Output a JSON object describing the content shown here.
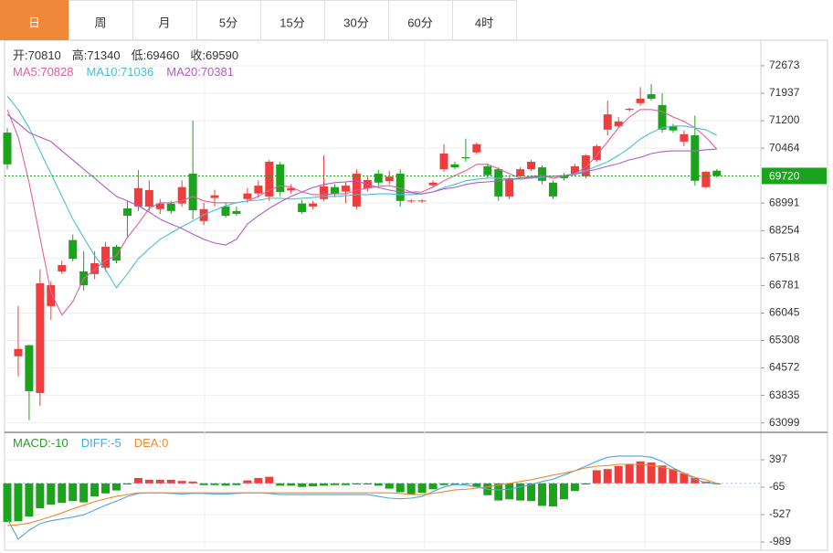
{
  "tabs": [
    {
      "label": "日",
      "active": true
    },
    {
      "label": "周",
      "active": false
    },
    {
      "label": "月",
      "active": false
    },
    {
      "label": "5分",
      "active": false
    },
    {
      "label": "15分",
      "active": false
    },
    {
      "label": "30分",
      "active": false
    },
    {
      "label": "60分",
      "active": false
    },
    {
      "label": "4时",
      "active": false
    }
  ],
  "chart_data": [
    {
      "type": "candlestick",
      "ohlc_labels": [
        "开:",
        "高:",
        "低:",
        "收:"
      ],
      "ohlc_values": [
        70810,
        71340,
        69460,
        69590
      ],
      "open": [
        70880,
        64885,
        65180,
        63900,
        66230,
        67160,
        68000,
        67160,
        67090,
        67260,
        67820,
        68850,
        68900,
        68900,
        68830,
        68980,
        68980,
        69780,
        68510,
        69130,
        68900,
        68780,
        69100,
        69250,
        69170,
        70030,
        69330,
        68980,
        68900,
        69100,
        69420,
        69300,
        68900,
        69390,
        69780,
        69580,
        69780,
        69050,
        69050,
        69470,
        69900,
        70030,
        70220,
        70350,
        69980,
        69900,
        69170,
        69710,
        69900,
        69950,
        69540,
        69730,
        69780,
        69710,
        70150,
        70960,
        71050,
        71490,
        71670,
        71910,
        71620,
        71050,
        70640,
        70810,
        69420,
        69860
      ],
      "high": [
        71000,
        66230,
        65200,
        67210,
        66900,
        67450,
        68150,
        67700,
        67700,
        67950,
        67870,
        69050,
        69880,
        69600,
        69100,
        69050,
        69600,
        71200,
        69000,
        69350,
        69000,
        68900,
        69400,
        69600,
        70150,
        70100,
        69500,
        69080,
        69050,
        70270,
        69500,
        69550,
        69900,
        69700,
        69880,
        69850,
        69900,
        69100,
        69100,
        69600,
        70570,
        70100,
        70720,
        70620,
        70050,
        69950,
        69700,
        69950,
        70150,
        70000,
        69600,
        69800,
        70050,
        70300,
        70570,
        71740,
        71300,
        71550,
        72100,
        72180,
        71940,
        71120,
        70940,
        71340,
        69850,
        69900
      ],
      "low": [
        69900,
        64350,
        63170,
        63550,
        65860,
        67090,
        67430,
        66650,
        66950,
        67160,
        67380,
        68050,
        68780,
        68780,
        68700,
        68700,
        68900,
        68560,
        68400,
        68900,
        68600,
        68650,
        69000,
        69130,
        69050,
        69170,
        69250,
        68700,
        68830,
        69050,
        69150,
        68990,
        68830,
        69300,
        69460,
        69500,
        68900,
        69000,
        69000,
        69400,
        69830,
        69900,
        70100,
        70300,
        69650,
        69050,
        69100,
        69650,
        69850,
        69500,
        69100,
        69600,
        69700,
        69650,
        70100,
        70800,
        71000,
        71450,
        71600,
        71740,
        70880,
        70880,
        70520,
        69460,
        69400,
        69680
      ],
      "close": [
        70030,
        65080,
        63950,
        66840,
        66790,
        67330,
        67500,
        66790,
        67380,
        67820,
        67450,
        68650,
        69390,
        69340,
        68980,
        68780,
        69420,
        68800,
        68830,
        69200,
        68650,
        68700,
        69250,
        69460,
        70100,
        69290,
        69390,
        68750,
        68980,
        69440,
        69230,
        69460,
        69780,
        69610,
        69540,
        69700,
        69050,
        69060,
        69060,
        69540,
        70320,
        69950,
        70190,
        70570,
        69740,
        69170,
        69660,
        69900,
        70100,
        69590,
        69170,
        69660,
        69980,
        70270,
        70520,
        71370,
        71180,
        71520,
        71790,
        71790,
        70960,
        70940,
        70840,
        69590,
        69830,
        69720
      ],
      "up_color": "#f03c3c",
      "down_color": "#1ba31b",
      "series": [
        {
          "name": "MA5:",
          "legend_value": 70828,
          "color": "#e0609a",
          "values": [
            71500,
            70760,
            69540,
            68070,
            66600,
            65990,
            66350,
            66970,
            67210,
            67460,
            67580,
            68070,
            68440,
            68850,
            69000,
            69000,
            69050,
            69170,
            69050,
            69000,
            69000,
            69000,
            69050,
            69170,
            69340,
            69460,
            69420,
            69290,
            69220,
            69220,
            69240,
            69240,
            69340,
            69390,
            69440,
            69460,
            69390,
            69290,
            69290,
            69420,
            69590,
            69730,
            69860,
            70030,
            70030,
            69910,
            69780,
            69660,
            69710,
            69730,
            69660,
            69710,
            69780,
            69950,
            70270,
            70640,
            71010,
            71300,
            71500,
            71500,
            71450,
            71300,
            71180,
            71010,
            70760,
            70440
          ]
        },
        {
          "name": "MA10:",
          "legend_value": 71036,
          "color": "#48c0d8",
          "values": [
            71860,
            71500,
            71010,
            70390,
            69780,
            69170,
            68560,
            68070,
            67580,
            67210,
            66720,
            67090,
            67500,
            67770,
            68020,
            68190,
            68360,
            68510,
            68680,
            68800,
            68920,
            69000,
            69050,
            69070,
            69120,
            69120,
            69100,
            69120,
            69140,
            69170,
            69170,
            69190,
            69220,
            69220,
            69240,
            69240,
            69220,
            69220,
            69240,
            69290,
            69410,
            69490,
            69590,
            69630,
            69660,
            69660,
            69630,
            69630,
            69660,
            69680,
            69710,
            69730,
            69780,
            69860,
            69980,
            70100,
            70270,
            70470,
            70710,
            70880,
            71010,
            71060,
            71060,
            71010,
            70960,
            70810
          ]
        },
        {
          "name": "MA20:",
          "legend_value": 70381,
          "color": "#b05cc8",
          "values": [
            71370,
            71130,
            70880,
            70760,
            70640,
            70390,
            70150,
            69900,
            69660,
            69410,
            69170,
            69050,
            68920,
            68750,
            68560,
            68430,
            68310,
            68160,
            68020,
            67920,
            67870,
            68020,
            68430,
            68650,
            68850,
            69020,
            69170,
            69290,
            69410,
            69490,
            69540,
            69560,
            69590,
            69490,
            69410,
            69340,
            69290,
            69270,
            69240,
            69290,
            69370,
            69410,
            69490,
            69540,
            69560,
            69590,
            69630,
            69660,
            69680,
            69710,
            69710,
            69730,
            69760,
            69830,
            69900,
            69980,
            70050,
            70150,
            70220,
            70320,
            70370,
            70390,
            70390,
            70390,
            70420,
            70440
          ]
        }
      ],
      "ylim": [
        62870,
        73260
      ],
      "yticks": [
        63099,
        63835,
        64572,
        65308,
        66045,
        66781,
        67518,
        68254,
        68991,
        70464,
        71200,
        71937,
        72673
      ],
      "grid": true,
      "current_price": 69720,
      "current_color": "#1ba31b"
    },
    {
      "type": "macd",
      "series": [
        {
          "name": "MACD:",
          "legend_value": -10,
          "color": "#2a9a2a",
          "kind": "bar",
          "up_color": "#f03c3c",
          "down_color": "#1ba31b",
          "values": [
            -650,
            -640,
            -560,
            -420,
            -360,
            -330,
            -300,
            -320,
            -220,
            -170,
            -120,
            -20,
            90,
            60,
            60,
            60,
            40,
            30,
            -30,
            -30,
            -40,
            -30,
            50,
            90,
            110,
            -40,
            -40,
            -60,
            -50,
            -40,
            -30,
            -30,
            -20,
            -20,
            -40,
            -90,
            -150,
            -180,
            -160,
            -100,
            -30,
            -20,
            -10,
            -60,
            -200,
            -290,
            -270,
            -290,
            -300,
            -380,
            -390,
            -270,
            -130,
            -20,
            220,
            240,
            290,
            330,
            370,
            350,
            300,
            240,
            170,
            90,
            30,
            -10
          ]
        },
        {
          "name": "DIFF:",
          "legend_value": -5,
          "color": "#4aa8e0",
          "kind": "line",
          "values": [
            -600,
            -940,
            -790,
            -680,
            -630,
            -600,
            -570,
            -530,
            -450,
            -370,
            -300,
            -220,
            -170,
            -160,
            -160,
            -170,
            -180,
            -170,
            -170,
            -180,
            -180,
            -170,
            -160,
            -160,
            -170,
            -190,
            -190,
            -190,
            -190,
            -190,
            -190,
            -190,
            -190,
            -190,
            -220,
            -250,
            -260,
            -250,
            -220,
            -140,
            -60,
            -20,
            -30,
            -60,
            -100,
            -110,
            -100,
            -60,
            -20,
            30,
            70,
            140,
            210,
            290,
            370,
            440,
            460,
            460,
            460,
            440,
            370,
            260,
            170,
            70,
            10,
            -5
          ]
        },
        {
          "name": "DEA:",
          "legend_value": 0,
          "color": "#f08a30",
          "kind": "line",
          "values": [
            -710,
            -700,
            -670,
            -620,
            -560,
            -500,
            -430,
            -370,
            -310,
            -260,
            -220,
            -190,
            -160,
            -160,
            -160,
            -160,
            -160,
            -160,
            -160,
            -160,
            -160,
            -160,
            -160,
            -160,
            -160,
            -160,
            -160,
            -160,
            -160,
            -160,
            -160,
            -160,
            -160,
            -160,
            -160,
            -160,
            -170,
            -190,
            -190,
            -170,
            -140,
            -110,
            -100,
            -80,
            -60,
            -30,
            0,
            30,
            60,
            100,
            140,
            170,
            210,
            260,
            290,
            300,
            320,
            320,
            320,
            300,
            270,
            230,
            170,
            100,
            60,
            0
          ]
        }
      ],
      "ylim": [
        -1128,
        813
      ],
      "yticks": [
        -989,
        -527,
        -65,
        397
      ],
      "grid": true
    }
  ]
}
